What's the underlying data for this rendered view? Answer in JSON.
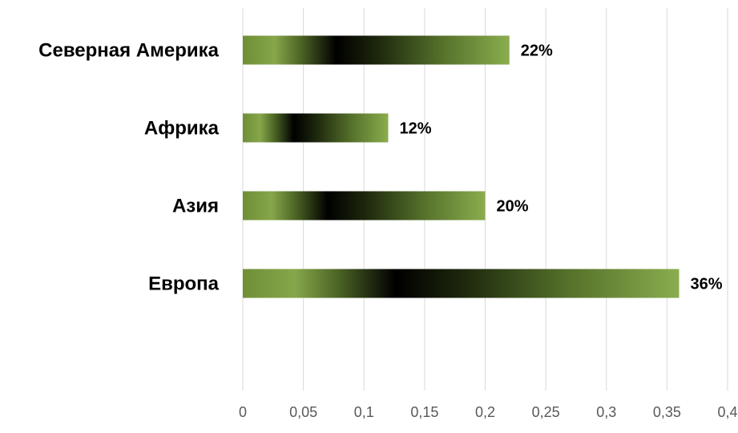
{
  "chart_data": {
    "type": "bar",
    "orientation": "horizontal",
    "categories": [
      "Северная Америка",
      "Африка",
      "Азия",
      "Европа"
    ],
    "values": [
      0.22,
      0.12,
      0.2,
      0.36
    ],
    "data_labels": [
      "22%",
      "12%",
      "20%",
      "36%"
    ],
    "x_ticks": [
      "0",
      "0,05",
      "0,1",
      "0,15",
      "0,2",
      "0,25",
      "0,3",
      "0,35",
      "0,4"
    ],
    "xlim": [
      0,
      0.4
    ],
    "grid": true,
    "legend": "none",
    "colors": {
      "bar_light": "#86a64a",
      "bar_mid": "#5d7a2e",
      "bar_dark": "#000000",
      "grid": "#d9d9d9"
    }
  }
}
